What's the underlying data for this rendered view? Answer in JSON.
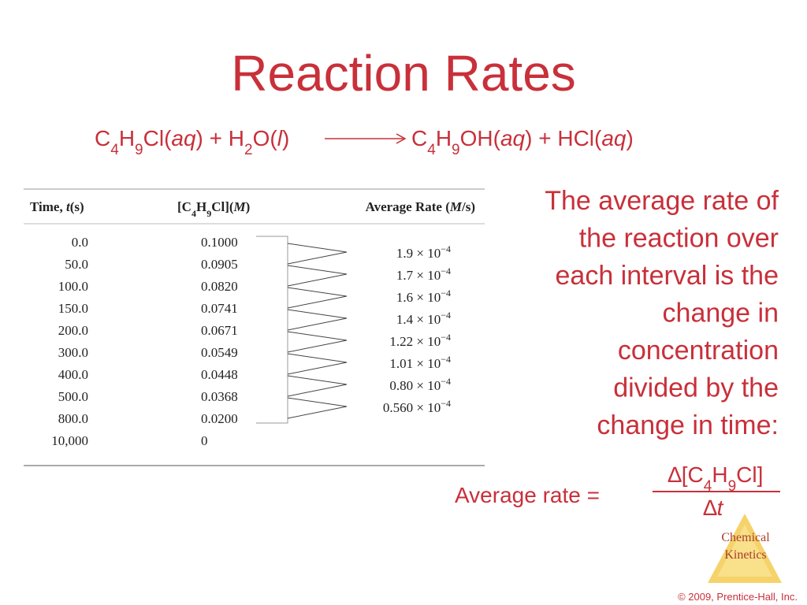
{
  "title": "Reaction Rates",
  "equation": {
    "left": [
      "C",
      "4",
      "H",
      "9",
      "Cl(",
      "aq",
      ") + H",
      "2",
      "O(",
      "l",
      ")"
    ],
    "right": [
      "C",
      "4",
      "H",
      "9",
      "OH(",
      "aq",
      ") + HCl(",
      "aq",
      ")"
    ]
  },
  "table": {
    "headers": [
      [
        "Time, ",
        "t",
        "(s)"
      ],
      [
        "[C",
        "4",
        "H",
        "9",
        "Cl](",
        "M",
        ")"
      ],
      [
        "Average Rate (",
        "M",
        "/s)"
      ]
    ],
    "times": [
      "0.0",
      "50.0",
      "100.0",
      "150.0",
      "200.0",
      "300.0",
      "400.0",
      "500.0",
      "800.0",
      "10,000"
    ],
    "concentrations": [
      "0.1000",
      "0.0905",
      "0.0820",
      "0.0741",
      "0.0671",
      "0.0549",
      "0.0448",
      "0.0368",
      "0.0200",
      "0"
    ],
    "rates": [
      {
        "base": "1.9 × 10",
        "exp": "−4"
      },
      {
        "base": "1.7 × 10",
        "exp": "−4"
      },
      {
        "base": "1.6 × 10",
        "exp": "−4"
      },
      {
        "base": "1.4 × 10",
        "exp": "−4"
      },
      {
        "base": "1.22 × 10",
        "exp": "−4"
      },
      {
        "base": "1.01 × 10",
        "exp": "−4"
      },
      {
        "base": "0.80 × 10",
        "exp": "−4"
      },
      {
        "base": "0.560 × 10",
        "exp": "−4"
      }
    ]
  },
  "description": [
    "The average rate of",
    "the reaction over",
    "each interval is the",
    "change in",
    "concentration",
    "divided by the",
    "change in time:"
  ],
  "formula": {
    "label": "Average rate =",
    "numerator": [
      "∆[C",
      "4",
      "H",
      "9",
      "Cl]"
    ],
    "denominator": [
      "∆",
      "t"
    ]
  },
  "logo": [
    "Chemical",
    "Kinetics"
  ],
  "copyright": "© 2009, Prentice-Hall, Inc."
}
